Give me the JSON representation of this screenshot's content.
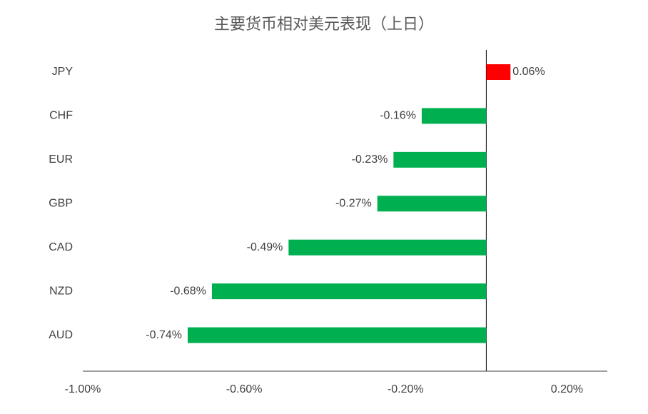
{
  "chart_data": {
    "type": "bar",
    "orientation": "horizontal",
    "title": "主要货币相对美元表现（上日）",
    "categories": [
      "JPY",
      "CHF",
      "EUR",
      "GBP",
      "CAD",
      "NZD",
      "AUD"
    ],
    "values": [
      0.06,
      -0.16,
      -0.23,
      -0.27,
      -0.49,
      -0.68,
      -0.74
    ],
    "value_labels": [
      "0.06%",
      "-0.16%",
      "-0.23%",
      "-0.27%",
      "-0.49%",
      "-0.68%",
      "-0.74%"
    ],
    "color_positive": "#ff0000",
    "color_negative": "#00b050",
    "xlim": [
      -1,
      0.3
    ],
    "xticks": [
      {
        "value": -1,
        "label": "-1.00%"
      },
      {
        "value": -0.6,
        "label": "-0.60%"
      },
      {
        "value": -0.2,
        "label": "-0.20%"
      },
      {
        "value": 0.2,
        "label": "0.20%"
      }
    ],
    "grid": false
  }
}
